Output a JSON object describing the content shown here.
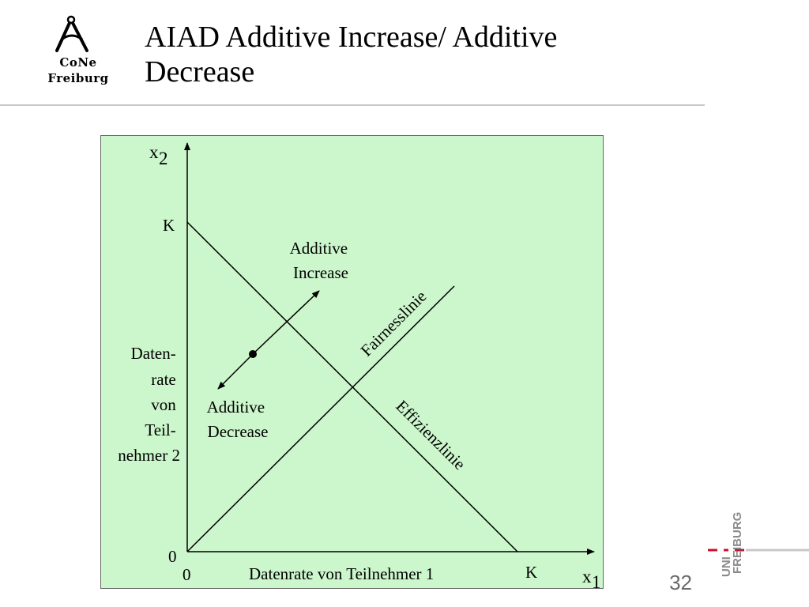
{
  "logo": {
    "line1": "CoNe",
    "line2": "Freiburg",
    "icon": "cone-a-icon"
  },
  "slide_title": "AIAD Additive Increase/ Additive Decrease",
  "diagram": {
    "background": "#ccf6cc",
    "y_axis_variable": "x",
    "y_axis_subscript": "2",
    "x_axis_variable": "x",
    "x_axis_subscript": "1",
    "y_label_lines": [
      "Daten-",
      "rate",
      "von",
      "Teil-",
      "nehmer 2"
    ],
    "x_label": "Datenrate von Teilnehmer 1",
    "tick_k_y": "K",
    "tick_k_x": "K",
    "origin_y": "0",
    "origin_x": "0",
    "increase_lines": [
      "Additive",
      "Increase"
    ],
    "decrease_lines": [
      "Additive",
      "Decrease"
    ],
    "fairness_label": "Fairnesslinie",
    "efficiency_label": "Effizienzlinie"
  },
  "page_number": "32",
  "uni_logo": {
    "uni": "UNI",
    "freiburg": "FREIBURG",
    "accent": "#c8102e"
  }
}
